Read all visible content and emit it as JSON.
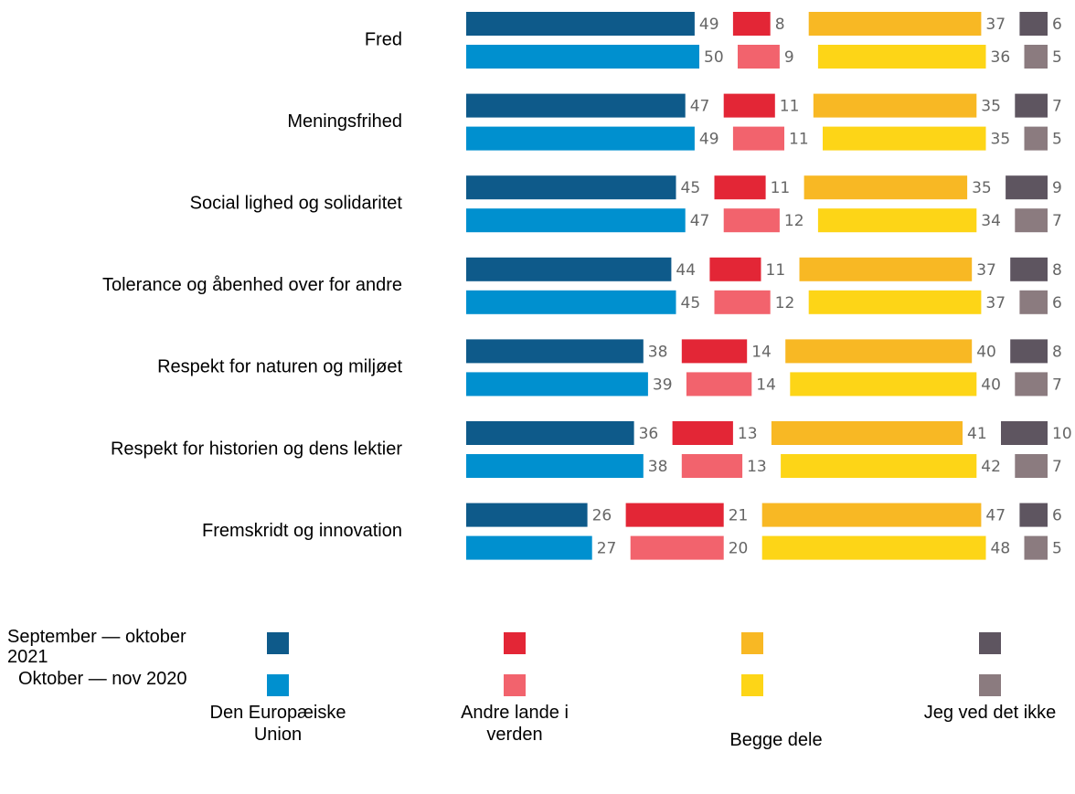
{
  "chart_data": {
    "type": "bar",
    "categories": [
      "Fred",
      "Meningsfrihed",
      "Social lighed og solidaritet",
      "Tolerance og åbenhed over for andre",
      "Respekt for naturen og miljøet",
      "Respekt for historien og dens lektier",
      "Fremskridt og innovation"
    ],
    "segments": [
      "Den Europæiske Union",
      "Andre lande i verden",
      "Begge dele",
      "Jeg ved det ikke"
    ],
    "series": [
      {
        "name": "September — oktober 2021",
        "colors": [
          "#0e5a8a",
          "#e32636",
          "#f8b824",
          "#5e5560"
        ],
        "values": [
          [
            49,
            8,
            37,
            6
          ],
          [
            47,
            11,
            35,
            7
          ],
          [
            45,
            11,
            35,
            9
          ],
          [
            44,
            11,
            37,
            8
          ],
          [
            38,
            14,
            40,
            8
          ],
          [
            36,
            13,
            41,
            10
          ],
          [
            26,
            21,
            47,
            6
          ]
        ]
      },
      {
        "name": "Oktober — nov 2020",
        "colors": [
          "#0090cf",
          "#f2636d",
          "#fdd517",
          "#8b7b7f"
        ],
        "values": [
          [
            50,
            9,
            36,
            5
          ],
          [
            49,
            11,
            35,
            5
          ],
          [
            47,
            12,
            34,
            7
          ],
          [
            45,
            12,
            37,
            6
          ],
          [
            39,
            14,
            40,
            7
          ],
          [
            38,
            13,
            42,
            7
          ],
          [
            27,
            20,
            48,
            5
          ]
        ]
      }
    ]
  }
}
